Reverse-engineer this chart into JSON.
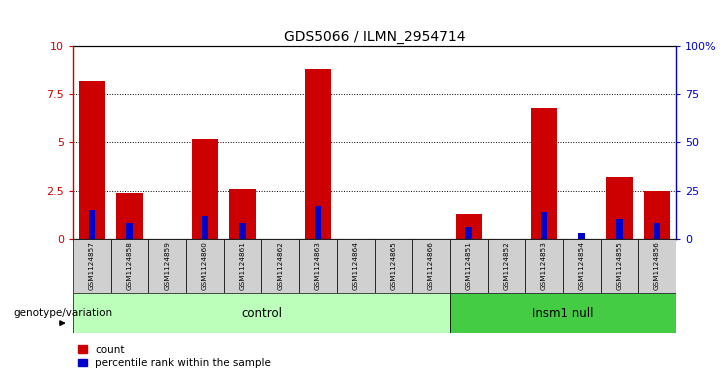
{
  "title": "GDS5066 / ILMN_2954714",
  "samples": [
    "GSM1124857",
    "GSM1124858",
    "GSM1124859",
    "GSM1124860",
    "GSM1124861",
    "GSM1124862",
    "GSM1124863",
    "GSM1124864",
    "GSM1124865",
    "GSM1124866",
    "GSM1124851",
    "GSM1124852",
    "GSM1124853",
    "GSM1124854",
    "GSM1124855",
    "GSM1124856"
  ],
  "count_values": [
    8.2,
    2.4,
    0.0,
    5.2,
    2.6,
    0.0,
    8.8,
    0.0,
    0.0,
    0.0,
    1.3,
    0.0,
    6.8,
    0.0,
    3.2,
    2.5
  ],
  "percentile_values": [
    15,
    8,
    0,
    12,
    8,
    0,
    17,
    0,
    0,
    0,
    6,
    0,
    14,
    3,
    10,
    8
  ],
  "groups": [
    {
      "label": "control",
      "start": 0,
      "end": 10,
      "color": "#bbffbb"
    },
    {
      "label": "Insm1 null",
      "start": 10,
      "end": 16,
      "color": "#44cc44"
    }
  ],
  "ylim_left": [
    0,
    10
  ],
  "ylim_right": [
    0,
    100
  ],
  "yticks_left": [
    0,
    2.5,
    5.0,
    7.5,
    10
  ],
  "yticks_right": [
    0,
    25,
    50,
    75,
    100
  ],
  "yticklabels_left": [
    "0",
    "2.5",
    "5",
    "7.5",
    "10"
  ],
  "yticklabels_right": [
    "0",
    "25",
    "50",
    "75",
    "100%"
  ],
  "bar_color_red": "#cc0000",
  "bar_color_blue": "#0000cc",
  "background_table": "#cccccc",
  "genotype_label": "genotype/variation",
  "legend_count": "count",
  "legend_percentile": "percentile rank within the sample"
}
